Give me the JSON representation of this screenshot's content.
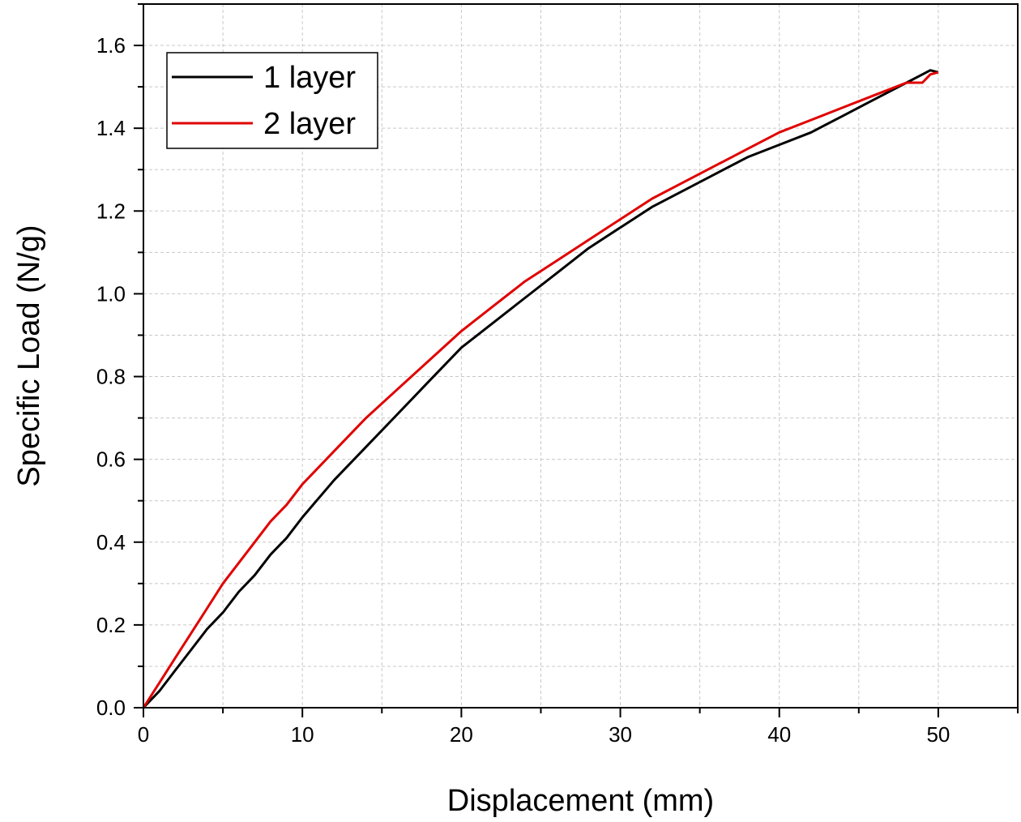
{
  "chart_data": {
    "type": "line",
    "title": "",
    "xlabel": "Displacement (mm)",
    "ylabel": "Specific Load (N/g)",
    "xlim": [
      0,
      55
    ],
    "ylim": [
      0,
      1.7
    ],
    "x_ticks": [
      0,
      10,
      20,
      30,
      40,
      50
    ],
    "x_tick_labels": [
      "0",
      "10",
      "20",
      "30",
      "40",
      "50"
    ],
    "y_ticks": [
      0.0,
      0.2,
      0.4,
      0.6,
      0.8,
      1.0,
      1.2,
      1.4,
      1.6
    ],
    "y_tick_labels": [
      "0.0",
      "0.2",
      "0.4",
      "0.6",
      "0.8",
      "1.0",
      "1.2",
      "1.4",
      "1.6"
    ],
    "grid": true,
    "legend_position": "top-left",
    "series": [
      {
        "name": "1 layer",
        "color": "#000000",
        "x": [
          0,
          1,
          2,
          3,
          4,
          5,
          6,
          7,
          8,
          9,
          10,
          12,
          14,
          16,
          18,
          20,
          22,
          24,
          26,
          28,
          30,
          32,
          34,
          36,
          38,
          40,
          42,
          44,
          46,
          48,
          49,
          49.5,
          50
        ],
        "y": [
          0.0,
          0.04,
          0.09,
          0.14,
          0.19,
          0.23,
          0.28,
          0.32,
          0.37,
          0.41,
          0.46,
          0.55,
          0.63,
          0.71,
          0.79,
          0.87,
          0.93,
          0.99,
          1.05,
          1.11,
          1.16,
          1.21,
          1.25,
          1.29,
          1.33,
          1.36,
          1.39,
          1.43,
          1.47,
          1.51,
          1.53,
          1.54,
          1.535
        ]
      },
      {
        "name": "2 layer",
        "color": "#e00000",
        "x": [
          0,
          1,
          2,
          3,
          4,
          5,
          6,
          7,
          8,
          9,
          10,
          12,
          14,
          16,
          18,
          20,
          22,
          24,
          26,
          28,
          30,
          32,
          34,
          36,
          38,
          40,
          42,
          44,
          46,
          48,
          49,
          49.5,
          50
        ],
        "y": [
          0.0,
          0.06,
          0.12,
          0.18,
          0.24,
          0.3,
          0.35,
          0.4,
          0.45,
          0.49,
          0.54,
          0.62,
          0.7,
          0.77,
          0.84,
          0.91,
          0.97,
          1.03,
          1.08,
          1.13,
          1.18,
          1.23,
          1.27,
          1.31,
          1.35,
          1.39,
          1.42,
          1.45,
          1.48,
          1.51,
          1.51,
          1.53,
          1.535
        ]
      }
    ]
  }
}
